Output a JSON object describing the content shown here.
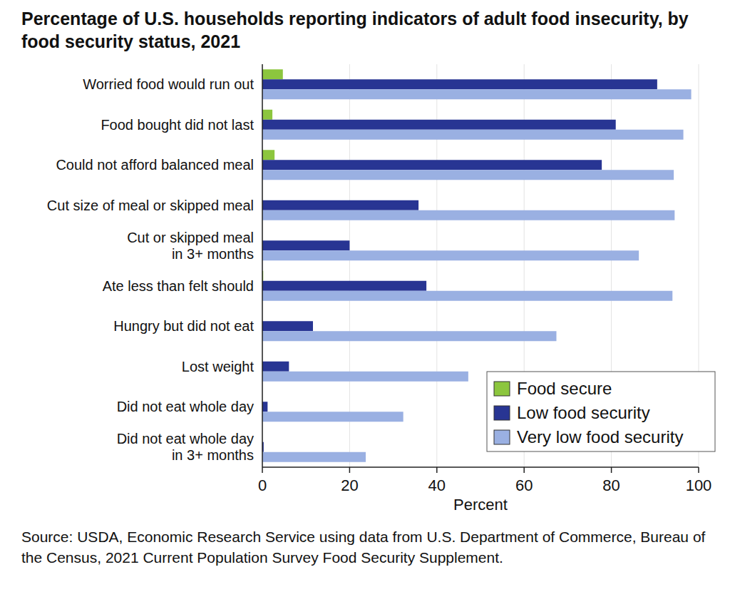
{
  "chart_data": {
    "type": "bar",
    "orientation": "horizontal",
    "title": "Percentage of U.S. households reporting indicators of adult food insecurity, by food security status, 2021",
    "x_label": "Percent",
    "source": "Source: USDA, Economic Research Service using data from U.S. Department of Commerce, Bureau of the Census, 2021 Current Population Survey Food Security Supplement.",
    "categories": [
      "Worried food would run out",
      "Food bought did not last",
      "Could not afford balanced meal",
      "Cut size of meal or skipped meal",
      "Cut or skipped meal\nin 3+ months",
      "Ate less than felt should",
      "Hungry but did not eat",
      "Lost weight",
      "Did not eat whole day",
      "Did not eat whole day\nin 3+ months"
    ],
    "series": [
      {
        "name": "Food secure",
        "color": "#8cc63e",
        "values": [
          4.7,
          2.3,
          2.8,
          0,
          0,
          0.2,
          0,
          0,
          0,
          0
        ]
      },
      {
        "name": "Low food security",
        "color": "#283593",
        "values": [
          90.5,
          81,
          77.8,
          35.8,
          20,
          37.6,
          11.6,
          6.1,
          1.2,
          0.3
        ]
      },
      {
        "name": "Very low food security",
        "color": "#9ab0e2",
        "values": [
          98.3,
          96.5,
          94.3,
          94.5,
          86.3,
          94,
          67.4,
          47.2,
          32.3,
          23.7
        ]
      }
    ],
    "xlim": [
      0,
      100
    ],
    "xticks": [
      0,
      20,
      40,
      60,
      80,
      100
    ],
    "grid": true,
    "legend": "lower right"
  }
}
